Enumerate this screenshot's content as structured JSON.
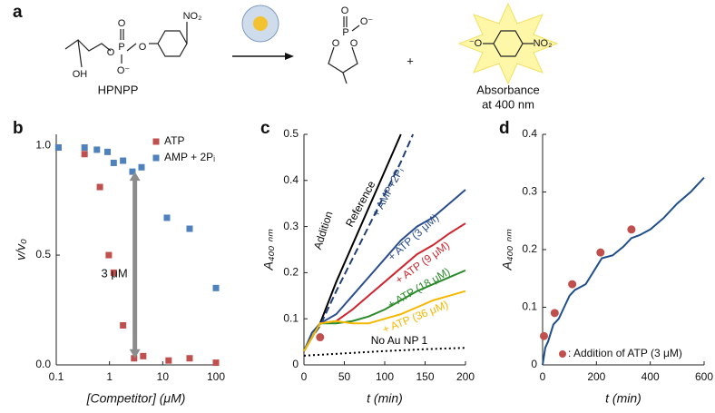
{
  "scheme": {
    "panel": "a",
    "reactant": {
      "name": "HPNPP",
      "atoms": [
        "OH",
        "O",
        "P",
        "O",
        "O⁻",
        "O",
        "NO₂"
      ]
    },
    "product1": {
      "atoms": [
        "O",
        "P",
        "O⁻",
        "O",
        "O"
      ]
    },
    "plus": "+",
    "product2": {
      "atoms": [
        "⁻O",
        "NO₂"
      ],
      "caption": [
        "Absorbance",
        "at 400 nm"
      ]
    }
  },
  "chart_data": [
    {
      "type": "scatter",
      "panel": "b",
      "xscale": "log",
      "xlabel": "[Competitor] (μM)",
      "ylabel": "v/v₀",
      "xlim": [
        0.1,
        100
      ],
      "xticks": [
        0.1,
        1,
        10,
        100
      ],
      "ylim": [
        0,
        1.05
      ],
      "yticks": [
        {
          "value": 0,
          "label": "0.0"
        },
        {
          "value": 0.5,
          "label": "0.5"
        },
        {
          "value": 1,
          "label": "1.0"
        }
      ],
      "legend": "upper right",
      "series": [
        {
          "name": "ATP",
          "color": "#c0504d",
          "x": [
            0.11,
            0.34,
            0.66,
            0.97,
            1.2,
            1.8,
            2.9,
            4.3,
            12.9,
            32,
            100
          ],
          "values": [
            0.99,
            0.96,
            0.81,
            0.5,
            0.42,
            0.18,
            0.03,
            0.04,
            0.02,
            0.03,
            0.01
          ]
        },
        {
          "name": "AMP + 2Pᵢ",
          "color": "#4f81bd",
          "x": [
            0.11,
            0.34,
            0.58,
            0.92,
            1.2,
            1.8,
            2.7,
            4.0,
            12.0,
            32,
            100
          ],
          "values": [
            0.99,
            0.99,
            0.98,
            0.97,
            0.92,
            0.93,
            0.88,
            0.9,
            0.67,
            0.62,
            0.35
          ]
        }
      ],
      "annotation": {
        "text": "3 μM",
        "x": 3,
        "from": 0.88,
        "to": 0.03
      }
    },
    {
      "type": "line",
      "panel": "c",
      "xlabel": "t (min)",
      "ylabel": "A₄₀₀ ₙₘ",
      "xlim": [
        0,
        200
      ],
      "xticks": [
        0,
        50,
        100,
        150,
        200
      ],
      "ylim": [
        0,
        0.5
      ],
      "yticks": [
        0,
        0.1,
        0.2,
        0.3,
        0.4,
        0.5
      ],
      "series": [
        {
          "name": "Reference",
          "color": "#000000",
          "dash": "solid",
          "x": [
            0,
            10,
            20,
            40,
            60,
            80,
            100,
            120
          ],
          "values": [
            0.03,
            0.06,
            0.09,
            0.18,
            0.26,
            0.34,
            0.42,
            0.5
          ]
        },
        {
          "name": "+ AMP+2Pᵢ",
          "color": "#1f3f7a",
          "dash": "dashed",
          "x": [
            0,
            10,
            20,
            40,
            60,
            80,
            100,
            120,
            135
          ],
          "values": [
            0.03,
            0.06,
            0.085,
            0.16,
            0.23,
            0.3,
            0.37,
            0.44,
            0.5
          ]
        },
        {
          "name": "+ ATP (3 μM)",
          "color": "#2a4d8f",
          "dash": "solid",
          "x": [
            0,
            10,
            20,
            40,
            60,
            80,
            100,
            120,
            140,
            160,
            180,
            200
          ],
          "values": [
            0.03,
            0.07,
            0.09,
            0.11,
            0.15,
            0.19,
            0.23,
            0.27,
            0.3,
            0.32,
            0.35,
            0.38
          ]
        },
        {
          "name": "+ ATP (9 μM)",
          "color": "#d0262f",
          "dash": "solid",
          "x": [
            0,
            20,
            40,
            60,
            80,
            100,
            120,
            140,
            160,
            180,
            200
          ],
          "values": [
            0.03,
            0.09,
            0.095,
            0.12,
            0.15,
            0.18,
            0.21,
            0.24,
            0.26,
            0.285,
            0.307
          ]
        },
        {
          "name": "+ ATP (18 μM)",
          "color": "#2b8a2b",
          "dash": "solid",
          "x": [
            0,
            20,
            40,
            60,
            80,
            100,
            120,
            140,
            160,
            180,
            200
          ],
          "values": [
            0.03,
            0.09,
            0.09,
            0.095,
            0.105,
            0.12,
            0.14,
            0.16,
            0.175,
            0.19,
            0.205
          ]
        },
        {
          "name": "+ ATP (36 μM)",
          "color": "#f5b800",
          "dash": "solid",
          "x": [
            0,
            20,
            40,
            60,
            80,
            100,
            120,
            140,
            160,
            180,
            200
          ],
          "values": [
            0.03,
            0.09,
            0.095,
            0.09,
            0.09,
            0.1,
            0.11,
            0.125,
            0.14,
            0.15,
            0.16
          ]
        },
        {
          "name": "No Au NP 1",
          "color": "#000000",
          "dash": "dotted",
          "x": [
            0,
            50,
            100,
            150,
            200
          ],
          "values": [
            0.02,
            0.025,
            0.03,
            0.034,
            0.037
          ]
        }
      ],
      "markers": {
        "color": "#c0504d",
        "x": [
          20
        ],
        "values": [
          0.06
        ],
        "label": "Addition"
      }
    },
    {
      "type": "line",
      "panel": "d",
      "xlabel": "t (min)",
      "ylabel": "A₄₀₀ ₙₘ",
      "xlim": [
        0,
        600
      ],
      "xticks": [
        0,
        200,
        400,
        600
      ],
      "ylim": [
        0,
        0.4
      ],
      "yticks": [
        0,
        0.1,
        0.2,
        0.3,
        0.4
      ],
      "series": [
        {
          "color": "#1f4e8c",
          "dash": "solid",
          "x": [
            0,
            10,
            20,
            40,
            60,
            80,
            100,
            120,
            160,
            200,
            220,
            260,
            300,
            330,
            360,
            400,
            450,
            500,
            550,
            600
          ],
          "values": [
            0,
            0.03,
            0.04,
            0.07,
            0.08,
            0.1,
            0.12,
            0.13,
            0.14,
            0.17,
            0.185,
            0.19,
            0.205,
            0.22,
            0.225,
            0.235,
            0.255,
            0.28,
            0.3,
            0.325
          ]
        }
      ],
      "markers": {
        "color": "#c0504d",
        "x": [
          5,
          45,
          110,
          215,
          330
        ],
        "values": [
          0.05,
          0.09,
          0.14,
          0.195,
          0.235
        ],
        "label": ": Addition of ATP (3 μM)"
      }
    }
  ]
}
